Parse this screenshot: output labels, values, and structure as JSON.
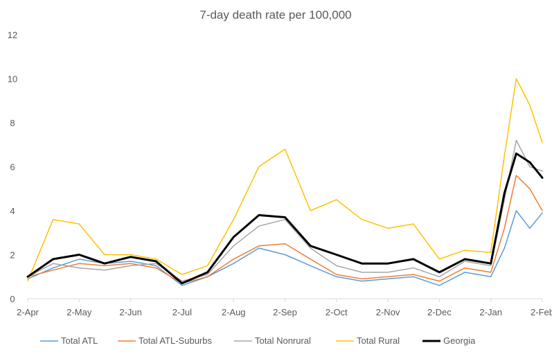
{
  "chart_data": {
    "type": "line",
    "title": "7-day death rate per 100,000",
    "xlabel": "",
    "ylabel": "",
    "ylim": [
      0,
      12
    ],
    "yticks": [
      0,
      2,
      4,
      6,
      8,
      10,
      12
    ],
    "grid": false,
    "legend_position": "bottom",
    "x_tick_labels": [
      "2-Apr",
      "2-May",
      "2-Jun",
      "2-Jul",
      "2-Aug",
      "2-Sep",
      "2-Oct",
      "2-Nov",
      "2-Dec",
      "2-Jan",
      "2-Feb"
    ],
    "x": [
      "2-Apr",
      "17-Apr",
      "2-May",
      "17-May",
      "2-Jun",
      "17-Jun",
      "2-Jul",
      "17-Jul",
      "2-Aug",
      "17-Aug",
      "2-Sep",
      "17-Sep",
      "2-Oct",
      "17-Oct",
      "2-Nov",
      "17-Nov",
      "2-Dec",
      "17-Dec",
      "2-Jan",
      "10-Jan",
      "17-Jan",
      "25-Jan",
      "2-Feb"
    ],
    "series": [
      {
        "name": "Total ATL",
        "color": "#5b9bd5",
        "width": 1.5,
        "values": [
          0.9,
          1.4,
          1.8,
          1.6,
          1.7,
          1.5,
          0.6,
          1.0,
          1.6,
          2.3,
          2.0,
          1.5,
          1.0,
          0.8,
          0.9,
          1.0,
          0.6,
          1.2,
          1.0,
          2.3,
          4.0,
          3.2,
          3.9
        ]
      },
      {
        "name": "Total ATL-Suburbs",
        "color": "#ed7d31",
        "width": 1.5,
        "values": [
          1.0,
          1.3,
          1.6,
          1.5,
          1.6,
          1.4,
          0.7,
          1.0,
          1.8,
          2.4,
          2.5,
          1.8,
          1.1,
          0.9,
          1.0,
          1.1,
          0.8,
          1.4,
          1.2,
          3.2,
          5.6,
          5.0,
          4.0
        ]
      },
      {
        "name": "Total Nonrural",
        "color": "#a5a5a5",
        "width": 1.5,
        "values": [
          1.0,
          1.6,
          1.4,
          1.3,
          1.5,
          1.6,
          0.8,
          1.1,
          2.4,
          3.3,
          3.6,
          2.3,
          1.5,
          1.2,
          1.2,
          1.4,
          1.0,
          1.7,
          1.5,
          4.5,
          7.2,
          6.0,
          5.8
        ]
      },
      {
        "name": "Total Rural",
        "color": "#ffc000",
        "width": 1.5,
        "values": [
          0.8,
          3.6,
          3.4,
          2.0,
          2.0,
          1.8,
          1.1,
          1.5,
          3.6,
          6.0,
          6.8,
          4.0,
          4.5,
          3.6,
          3.2,
          3.4,
          1.8,
          2.2,
          2.1,
          6.5,
          10.0,
          8.8,
          7.1
        ]
      },
      {
        "name": "Georgia",
        "color": "#000000",
        "width": 3,
        "values": [
          1.0,
          1.8,
          2.0,
          1.6,
          1.9,
          1.7,
          0.7,
          1.2,
          2.8,
          3.8,
          3.7,
          2.4,
          2.0,
          1.6,
          1.6,
          1.8,
          1.2,
          1.8,
          1.6,
          4.8,
          6.6,
          6.2,
          5.5
        ]
      }
    ]
  }
}
